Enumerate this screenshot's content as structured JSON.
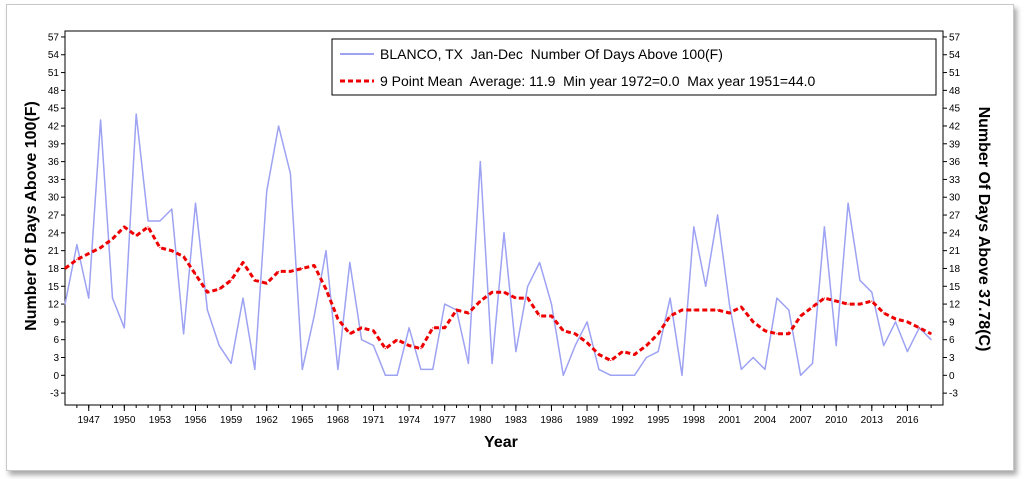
{
  "chart_data": {
    "type": "line",
    "xlabel": "Year",
    "ylabel_left": "Number Of Days Above 100(F)",
    "ylabel_right": "Number Of Days Above 37.78(C)",
    "xlim": [
      1945,
      2019
    ],
    "ylim": [
      -5,
      58
    ],
    "y_ticks": [
      -3,
      0,
      3,
      6,
      9,
      12,
      15,
      18,
      21,
      24,
      27,
      30,
      33,
      36,
      39,
      42,
      45,
      48,
      51,
      54,
      57
    ],
    "x_ticks": [
      1947,
      1950,
      1953,
      1956,
      1959,
      1962,
      1965,
      1968,
      1971,
      1974,
      1977,
      1980,
      1983,
      1986,
      1989,
      1992,
      1995,
      1998,
      2001,
      2004,
      2007,
      2010,
      2013,
      2016
    ],
    "grid": false,
    "legend_position": "top-right",
    "colors": {
      "annual": "#9da2f3",
      "mean": "#ee0000"
    },
    "series": [
      {
        "name": "BLANCO, TX  Jan-Dec  Number Of Days Above 100(F)",
        "style": "solid",
        "x": [
          1945,
          1946,
          1947,
          1948,
          1949,
          1950,
          1951,
          1952,
          1953,
          1954,
          1955,
          1956,
          1957,
          1958,
          1959,
          1960,
          1961,
          1962,
          1963,
          1964,
          1965,
          1966,
          1967,
          1968,
          1969,
          1970,
          1971,
          1972,
          1973,
          1974,
          1975,
          1976,
          1977,
          1978,
          1979,
          1980,
          1981,
          1982,
          1983,
          1984,
          1985,
          1986,
          1987,
          1988,
          1989,
          1990,
          1991,
          1992,
          1993,
          1994,
          1995,
          1996,
          1997,
          1998,
          1999,
          2000,
          2001,
          2002,
          2003,
          2004,
          2005,
          2006,
          2007,
          2008,
          2009,
          2010,
          2011,
          2012,
          2013,
          2014,
          2015,
          2016,
          2017,
          2018
        ],
        "values": [
          12,
          22,
          13,
          43,
          13,
          8,
          44,
          26,
          26,
          28,
          7,
          29,
          11,
          5,
          2,
          13,
          1,
          31,
          42,
          34,
          1,
          10,
          21,
          1,
          19,
          6,
          5,
          0,
          0,
          8,
          1,
          1,
          12,
          11,
          2,
          36,
          2,
          24,
          4,
          15,
          19,
          12,
          0,
          5,
          9,
          1,
          0,
          0,
          0,
          3,
          4,
          13,
          0,
          25,
          15,
          27,
          12,
          1,
          3,
          1,
          13,
          11,
          0,
          2,
          25,
          5,
          29,
          16,
          14,
          5,
          9,
          4,
          8,
          6
        ]
      },
      {
        "name": "9 Point Mean  Average: 11.9  Min year 1972=0.0  Max year 1951=44.0",
        "style": "dashed",
        "x": [
          1945,
          1946,
          1947,
          1948,
          1949,
          1950,
          1951,
          1952,
          1953,
          1954,
          1955,
          1956,
          1957,
          1958,
          1959,
          1960,
          1961,
          1962,
          1963,
          1964,
          1965,
          1966,
          1967,
          1968,
          1969,
          1970,
          1971,
          1972,
          1973,
          1974,
          1975,
          1976,
          1977,
          1978,
          1979,
          1980,
          1981,
          1982,
          1983,
          1984,
          1985,
          1986,
          1987,
          1988,
          1989,
          1990,
          1991,
          1992,
          1993,
          1994,
          1995,
          1996,
          1997,
          1998,
          1999,
          2000,
          2001,
          2002,
          2003,
          2004,
          2005,
          2006,
          2007,
          2008,
          2009,
          2010,
          2011,
          2012,
          2013,
          2014,
          2015,
          2016,
          2017,
          2018
        ],
        "values": [
          18,
          19.5,
          20.5,
          21.5,
          23,
          25,
          23.5,
          25,
          21.5,
          21,
          20,
          17,
          14,
          14.5,
          16,
          19,
          16,
          15.5,
          17.5,
          17.5,
          18,
          18.5,
          14.5,
          9.5,
          7,
          8,
          7.5,
          4.5,
          6,
          5,
          4.5,
          8,
          8,
          11,
          10.5,
          12.5,
          14,
          14,
          13,
          13,
          10,
          10,
          7.5,
          7,
          5.5,
          3.5,
          2.5,
          4,
          3.5,
          5,
          7,
          10,
          11,
          11,
          11,
          11,
          10.5,
          11.5,
          9,
          7.5,
          7,
          7,
          10,
          11.5,
          13,
          12.5,
          12,
          12,
          12.5,
          10.5,
          9.5,
          9,
          8,
          7
        ]
      }
    ]
  }
}
